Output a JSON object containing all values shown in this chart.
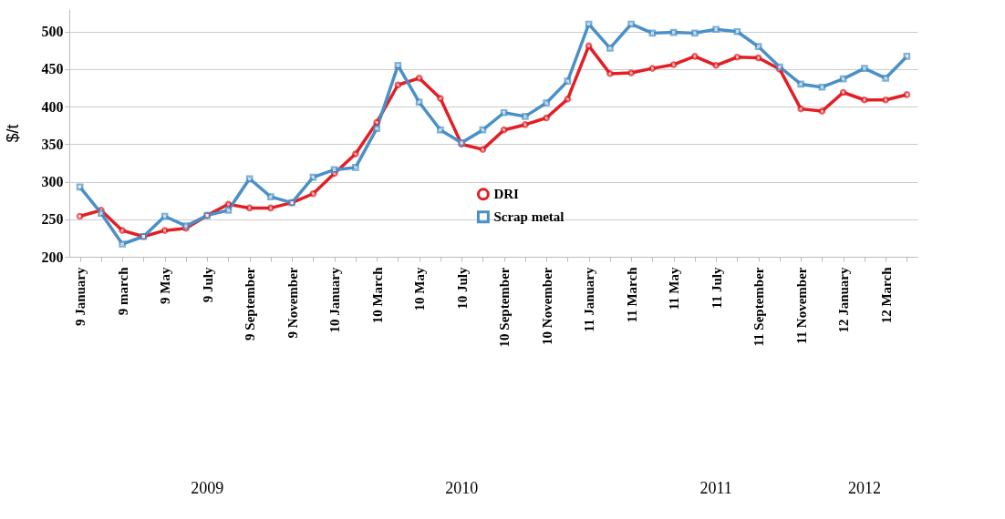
{
  "chart_data": {
    "type": "line",
    "ylabel": "$/t",
    "categories": [
      "9 January",
      null,
      "9 march",
      null,
      "9 May",
      null,
      "9 July",
      null,
      "9 September",
      null,
      "9 November",
      null,
      "10 January",
      null,
      "10 March",
      null,
      "10 May",
      null,
      "10 July",
      null,
      "10 September",
      null,
      "10 November",
      null,
      "11 January",
      null,
      "11 March",
      null,
      "11 May",
      null,
      "11 July",
      null,
      "11 September",
      null,
      "11 November",
      null,
      "12 January",
      null,
      "12 March",
      null
    ],
    "series": [
      {
        "name": "DRI",
        "color": "#e31e24",
        "marker": "circle",
        "values": [
          254,
          262,
          235,
          227,
          235,
          238,
          255,
          270,
          265,
          265,
          272,
          284,
          311,
          337,
          379,
          429,
          438,
          411,
          350,
          343,
          369,
          376,
          385,
          410,
          481,
          444,
          445,
          451,
          456,
          467,
          455,
          466,
          465,
          450,
          397,
          394,
          419,
          409,
          409,
          416
        ]
      },
      {
        "name": "Scrap metal",
        "color": "#4a90c8",
        "marker": "square",
        "values": [
          293,
          258,
          217,
          227,
          254,
          241,
          255,
          262,
          304,
          280,
          272,
          306,
          316,
          319,
          371,
          455,
          406,
          369,
          352,
          369,
          392,
          387,
          405,
          434,
          510,
          478,
          510,
          498,
          499,
          498,
          503,
          500,
          480,
          453,
          430,
          426,
          437,
          451,
          438,
          467
        ]
      }
    ],
    "ylim": [
      200,
      530
    ],
    "yticks": [
      200,
      250,
      300,
      350,
      400,
      450,
      500
    ],
    "grid": "y",
    "legend": "bottom",
    "line_style": "solid",
    "annotations": [
      "2009",
      "2010",
      "2011",
      "2012"
    ]
  }
}
